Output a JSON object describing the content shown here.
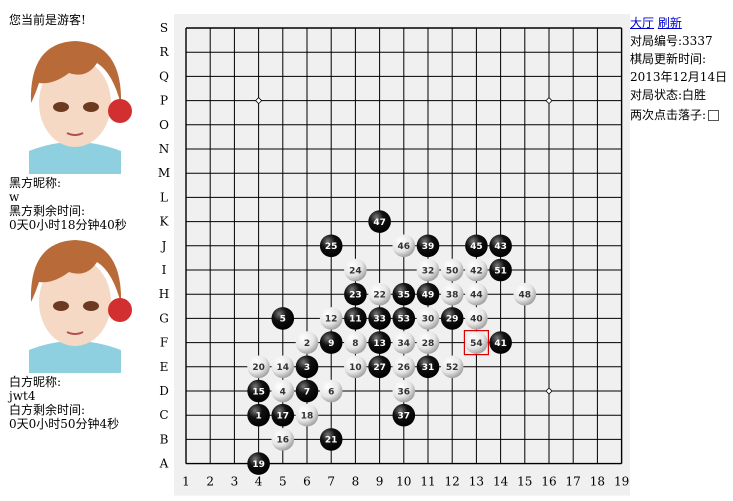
{
  "status": {
    "visitor_text": "您当前是游客!"
  },
  "black_player": {
    "nickname_label": "黑方昵称:",
    "nickname": "w",
    "time_label": "黑方剩余时间:",
    "time": "0天0小时18分钟40秒"
  },
  "white_player": {
    "nickname_label": "白方昵称:",
    "nickname": "jwt4",
    "time_label": "白方剩余时间:",
    "time": "0天0小时50分钟4秒"
  },
  "info": {
    "lobby_link": "大厅",
    "refresh_link": "刷新",
    "game_id_label": "对局编号:",
    "game_id": "3337",
    "update_label": "棋局更新时间:",
    "update_time": "2013年12月14日",
    "state_label": "对局状态:",
    "state": "白胜",
    "double_click_label": "两次点击落子:"
  },
  "board": {
    "size": 19,
    "col_labels": [
      "1",
      "2",
      "3",
      "4",
      "5",
      "6",
      "7",
      "8",
      "9",
      "10",
      "11",
      "12",
      "13",
      "14",
      "15",
      "16",
      "17",
      "18",
      "19"
    ],
    "row_labels": [
      "S",
      "R",
      "Q",
      "P",
      "O",
      "N",
      "M",
      "L",
      "K",
      "J",
      "I",
      "H",
      "G",
      "F",
      "E",
      "D",
      "C",
      "B",
      "A"
    ],
    "colors": {
      "background": "#f0f0f0",
      "grid": "#000000",
      "last_move_marker": "#dd0000"
    },
    "last_move": 54,
    "stones": [
      {
        "n": 1,
        "color": "black",
        "col": 4,
        "row": "C"
      },
      {
        "n": 2,
        "color": "white",
        "col": 6,
        "row": "F"
      },
      {
        "n": 3,
        "color": "black",
        "col": 6,
        "row": "E"
      },
      {
        "n": 4,
        "color": "white",
        "col": 5,
        "row": "D"
      },
      {
        "n": 5,
        "color": "black",
        "col": 5,
        "row": "G"
      },
      {
        "n": 6,
        "color": "white",
        "col": 7,
        "row": "D"
      },
      {
        "n": 7,
        "color": "black",
        "col": 6,
        "row": "D"
      },
      {
        "n": 8,
        "color": "white",
        "col": 8,
        "row": "F"
      },
      {
        "n": 9,
        "color": "black",
        "col": 7,
        "row": "F"
      },
      {
        "n": 10,
        "color": "white",
        "col": 8,
        "row": "E"
      },
      {
        "n": 11,
        "color": "black",
        "col": 8,
        "row": "G"
      },
      {
        "n": 12,
        "color": "white",
        "col": 7,
        "row": "G"
      },
      {
        "n": 13,
        "color": "black",
        "col": 9,
        "row": "F"
      },
      {
        "n": 14,
        "color": "white",
        "col": 5,
        "row": "E"
      },
      {
        "n": 15,
        "color": "black",
        "col": 4,
        "row": "D"
      },
      {
        "n": 16,
        "color": "white",
        "col": 5,
        "row": "B"
      },
      {
        "n": 17,
        "color": "black",
        "col": 5,
        "row": "C"
      },
      {
        "n": 18,
        "color": "white",
        "col": 6,
        "row": "C"
      },
      {
        "n": 19,
        "color": "black",
        "col": 4,
        "row": "A"
      },
      {
        "n": 20,
        "color": "white",
        "col": 4,
        "row": "E"
      },
      {
        "n": 21,
        "color": "black",
        "col": 7,
        "row": "B"
      },
      {
        "n": 22,
        "color": "white",
        "col": 9,
        "row": "H"
      },
      {
        "n": 23,
        "color": "black",
        "col": 8,
        "row": "H"
      },
      {
        "n": 24,
        "color": "white",
        "col": 8,
        "row": "I"
      },
      {
        "n": 25,
        "color": "black",
        "col": 7,
        "row": "J"
      },
      {
        "n": 26,
        "color": "white",
        "col": 10,
        "row": "E"
      },
      {
        "n": 27,
        "color": "black",
        "col": 9,
        "row": "E"
      },
      {
        "n": 28,
        "color": "white",
        "col": 11,
        "row": "F"
      },
      {
        "n": 29,
        "color": "black",
        "col": 12,
        "row": "G"
      },
      {
        "n": 30,
        "color": "white",
        "col": 11,
        "row": "G"
      },
      {
        "n": 31,
        "color": "black",
        "col": 11,
        "row": "E"
      },
      {
        "n": 32,
        "color": "white",
        "col": 11,
        "row": "I"
      },
      {
        "n": 33,
        "color": "black",
        "col": 9,
        "row": "G"
      },
      {
        "n": 34,
        "color": "white",
        "col": 10,
        "row": "F"
      },
      {
        "n": 35,
        "color": "black",
        "col": 10,
        "row": "H"
      },
      {
        "n": 36,
        "color": "white",
        "col": 10,
        "row": "D"
      },
      {
        "n": 37,
        "color": "black",
        "col": 10,
        "row": "C"
      },
      {
        "n": 38,
        "color": "white",
        "col": 12,
        "row": "H"
      },
      {
        "n": 39,
        "color": "black",
        "col": 11,
        "row": "J"
      },
      {
        "n": 40,
        "color": "white",
        "col": 13,
        "row": "G"
      },
      {
        "n": 41,
        "color": "black",
        "col": 14,
        "row": "F"
      },
      {
        "n": 42,
        "color": "white",
        "col": 13,
        "row": "I"
      },
      {
        "n": 43,
        "color": "black",
        "col": 14,
        "row": "J"
      },
      {
        "n": 44,
        "color": "white",
        "col": 13,
        "row": "H"
      },
      {
        "n": 45,
        "color": "black",
        "col": 13,
        "row": "J"
      },
      {
        "n": 46,
        "color": "white",
        "col": 10,
        "row": "J"
      },
      {
        "n": 47,
        "color": "black",
        "col": 9,
        "row": "K"
      },
      {
        "n": 48,
        "color": "white",
        "col": 15,
        "row": "H"
      },
      {
        "n": 49,
        "color": "black",
        "col": 11,
        "row": "H"
      },
      {
        "n": 50,
        "color": "white",
        "col": 12,
        "row": "I"
      },
      {
        "n": 51,
        "color": "black",
        "col": 14,
        "row": "I"
      },
      {
        "n": 52,
        "color": "white",
        "col": 12,
        "row": "E"
      },
      {
        "n": 53,
        "color": "black",
        "col": 10,
        "row": "G"
      },
      {
        "n": 54,
        "color": "white",
        "col": 13,
        "row": "F"
      }
    ]
  }
}
